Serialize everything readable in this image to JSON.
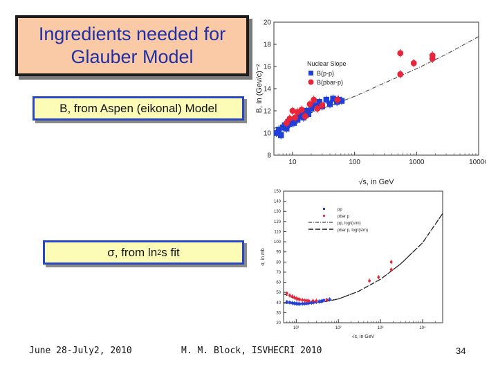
{
  "slide": {
    "title_line1": "Ingredients needed for",
    "title_line2": "Glauber Model",
    "box_b": "B, from Aspen (eikonal) Model",
    "box_sigma_symbol": "σ",
    "box_sigma_text": ", from ln",
    "box_sigma_sup": "2",
    "box_sigma_tail": "s fit",
    "footer_date": "June 28-July2, 2010",
    "footer_author": "M. M. Block, ISVHECRI 2010",
    "page_number": "34"
  },
  "chart_data": [
    {
      "type": "scatter",
      "title": "",
      "xlabel": "√s, in GeV",
      "ylabel": "B, in (Gev/c)⁻²",
      "xscale": "log",
      "xlim": [
        5,
        10000
      ],
      "ylim": [
        8,
        20
      ],
      "xticks": [
        "10",
        "100",
        "1000",
        "10000"
      ],
      "yticks": [
        "8",
        "10",
        "12",
        "14",
        "16",
        "18",
        "20"
      ],
      "legend_title": "Nuclear Slope",
      "legend_position": "top-left",
      "colors": {
        "pp": "#1f3fd6",
        "pbarp": "#e8253a",
        "fit": "#555555"
      },
      "series": [
        {
          "name": "B(p-p)",
          "marker": "square",
          "points": [
            [
              5.5,
              10.0
            ],
            [
              6,
              10.3
            ],
            [
              6.5,
              9.8
            ],
            [
              7,
              10.5
            ],
            [
              7.5,
              10.7
            ],
            [
              8,
              10.4
            ],
            [
              8.5,
              11.0
            ],
            [
              9,
              10.8
            ],
            [
              10,
              11.1
            ],
            [
              10.5,
              10.9
            ],
            [
              11,
              11.3
            ],
            [
              12,
              11.2
            ],
            [
              13,
              11.5
            ],
            [
              14,
              11.8
            ],
            [
              15,
              11.4
            ],
            [
              17,
              12.0
            ],
            [
              18,
              11.7
            ],
            [
              20,
              12.2
            ],
            [
              22,
              12.5
            ],
            [
              25,
              12.3
            ],
            [
              27,
              12.8
            ],
            [
              30,
              12.4
            ],
            [
              35,
              13.0
            ],
            [
              40,
              12.6
            ],
            [
              45,
              13.1
            ],
            [
              52,
              12.8
            ],
            [
              55,
              13.0
            ],
            [
              62,
              12.9
            ]
          ]
        },
        {
          "name": "B(pbar-p)",
          "marker": "circle",
          "points": [
            [
              8,
              10.9
            ],
            [
              9,
              11.3
            ],
            [
              10,
              12.0
            ],
            [
              11,
              11.4
            ],
            [
              12,
              11.9
            ],
            [
              14,
              12.1
            ],
            [
              16,
              11.5
            ],
            [
              19,
              12.6
            ],
            [
              22,
              13.0
            ],
            [
              25,
              12.2
            ],
            [
              30,
              12.5
            ],
            [
              53,
              13.0
            ],
            [
              546,
              15.3
            ],
            [
              546,
              17.2
            ],
            [
              900,
              16.3
            ],
            [
              1800,
              16.7
            ],
            [
              1800,
              17.0
            ]
          ]
        }
      ],
      "fit_line": {
        "x": [
          5,
          10,
          30,
          100,
          300,
          1000,
          3000,
          10000
        ],
        "y": [
          10.4,
          11.2,
          12.2,
          13.3,
          14.5,
          15.8,
          17.1,
          18.7
        ]
      }
    },
    {
      "type": "scatter",
      "title": "",
      "xlabel": "√s, in GeV",
      "ylabel": "σ, in mb",
      "xscale": "log",
      "xlim": [
        5,
        30000
      ],
      "ylim": [
        20,
        150
      ],
      "xticks": [
        "10¹",
        "10²",
        "10³",
        "10⁴"
      ],
      "yticks": [
        "20",
        "30",
        "40",
        "50",
        "60",
        "70",
        "80",
        "90",
        "100",
        "110",
        "120",
        "130",
        "140",
        "150"
      ],
      "legend_position": "top-left",
      "colors": {
        "pp": "#1f3fd6",
        "pbarp": "#e8253a",
        "fit": "#222222"
      },
      "series": [
        {
          "name": "pp",
          "marker": "square",
          "points": [
            [
              6,
              40.5
            ],
            [
              7,
              40.0
            ],
            [
              8,
              39.5
            ],
            [
              9,
              39.2
            ],
            [
              10,
              38.9
            ],
            [
              11,
              38.8
            ],
            [
              12,
              38.6
            ],
            [
              14,
              38.8
            ],
            [
              16,
              39.0
            ],
            [
              18,
              39.2
            ],
            [
              20,
              39.5
            ],
            [
              23,
              39.8
            ],
            [
              26,
              40.2
            ],
            [
              30,
              40.6
            ],
            [
              35,
              41.0
            ],
            [
              40,
              41.5
            ],
            [
              45,
              42.0
            ],
            [
              53,
              42.5
            ],
            [
              62,
              43.0
            ]
          ]
        },
        {
          "name": "pbar p",
          "marker": "circle",
          "points": [
            [
              6,
              49.0
            ],
            [
              7,
              47.0
            ],
            [
              8,
              46.0
            ],
            [
              9,
              45.0
            ],
            [
              10,
              44.0
            ],
            [
              11,
              43.5
            ],
            [
              12,
              43.0
            ],
            [
              14,
              42.5
            ],
            [
              16,
              42.0
            ],
            [
              18,
              41.8
            ],
            [
              20,
              41.6
            ],
            [
              25,
              41.6
            ],
            [
              30,
              41.7
            ],
            [
              53,
              42.5
            ],
            [
              546,
              61.5
            ],
            [
              900,
              65.0
            ],
            [
              1800,
              72.5
            ],
            [
              1800,
              80.0
            ]
          ]
        }
      ],
      "legend_fit_labels": [
        "pp, log²(s/m)",
        "pbar p, log²(s/m)"
      ],
      "fit_lines": [
        {
          "x": [
            5,
            8,
            12,
            20,
            40,
            100,
            300,
            1000,
            3000,
            10000,
            30000
          ],
          "y": [
            48.5,
            45.0,
            42.7,
            41.2,
            41.0,
            43.5,
            51.0,
            63.0,
            78.0,
            99.0,
            128.0
          ]
        },
        {
          "x": [
            5,
            8,
            12,
            20,
            40,
            100,
            300,
            1000,
            3000,
            10000,
            30000
          ],
          "y": [
            39.5,
            39.0,
            38.8,
            39.0,
            40.2,
            43.5,
            51.0,
            63.0,
            78.0,
            99.0,
            128.0
          ]
        }
      ]
    }
  ]
}
